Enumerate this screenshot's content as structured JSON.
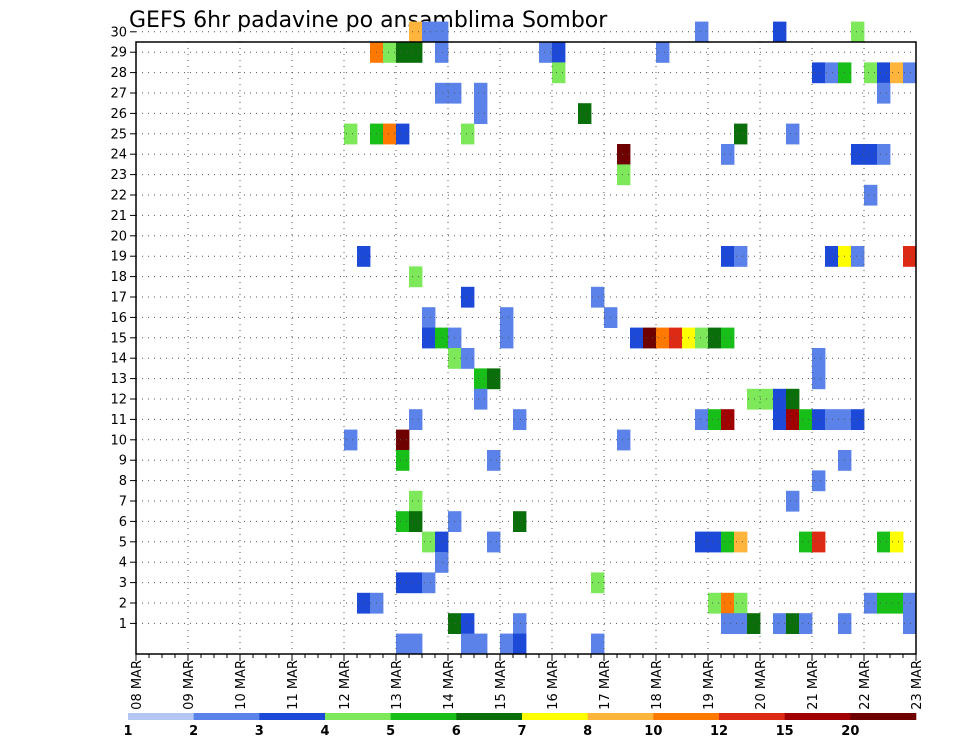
{
  "chart_data": {
    "type": "heatmap",
    "title": "GEFS 6hr padavine po ansamblima Sombor",
    "x_dates": [
      "08 MAR",
      "09 MAR",
      "10 MAR",
      "11 MAR",
      "12 MAR",
      "13 MAR",
      "14 MAR",
      "15 MAR",
      "16 MAR",
      "17 MAR",
      "18 MAR",
      "19 MAR",
      "20 MAR",
      "21 MAR",
      "22 MAR",
      "23 MAR"
    ],
    "x_range_days": [
      0,
      15
    ],
    "step_days": 0.25,
    "y_members": [
      1,
      2,
      3,
      4,
      5,
      6,
      7,
      8,
      9,
      10,
      11,
      12,
      13,
      14,
      15,
      16,
      17,
      18,
      19,
      20,
      21,
      22,
      23,
      24,
      25,
      26,
      27,
      28,
      29,
      30
    ],
    "grid": "dotted",
    "legend": {
      "placement": "bottom",
      "colors": [
        "#b4c6f2",
        "#5a82e8",
        "#1c49d8",
        "#7ce85a",
        "#18bf18",
        "#0a6e0a",
        "#ffff00",
        "#ffb43c",
        "#ff7800",
        "#dc2a14",
        "#a00000",
        "#6e0000"
      ],
      "labels": [
        "1",
        "2",
        "3",
        "4",
        "5",
        "6",
        "7",
        "8",
        "10",
        "12",
        "15",
        "20"
      ]
    },
    "cells": [
      [
        5.25,
        30,
        7
      ],
      [
        5.5,
        30,
        1
      ],
      [
        5.75,
        30,
        1
      ],
      [
        10.75,
        30,
        1
      ],
      [
        12.25,
        30,
        2
      ],
      [
        13.75,
        30,
        3
      ],
      [
        4.5,
        29,
        8
      ],
      [
        4.75,
        29,
        3
      ],
      [
        5.0,
        29,
        5
      ],
      [
        5.25,
        29,
        5
      ],
      [
        5.75,
        29,
        1
      ],
      [
        7.75,
        29,
        1
      ],
      [
        8.0,
        29,
        2
      ],
      [
        10.0,
        29,
        1
      ],
      [
        8.0,
        28,
        3
      ],
      [
        13.0,
        28,
        2
      ],
      [
        13.25,
        28,
        1
      ],
      [
        13.5,
        28,
        4
      ],
      [
        14.0,
        28,
        3
      ],
      [
        14.25,
        28,
        2
      ],
      [
        14.5,
        28,
        7
      ],
      [
        14.75,
        28,
        1
      ],
      [
        5.75,
        27,
        1
      ],
      [
        6.0,
        27,
        1
      ],
      [
        6.5,
        27,
        1
      ],
      [
        14.25,
        27,
        1
      ],
      [
        6.5,
        26,
        1
      ],
      [
        8.5,
        26,
        5
      ],
      [
        4.0,
        25,
        3
      ],
      [
        4.5,
        25,
        4
      ],
      [
        4.75,
        25,
        8
      ],
      [
        5.0,
        25,
        2
      ],
      [
        6.25,
        25,
        3
      ],
      [
        11.5,
        25,
        5
      ],
      [
        12.5,
        25,
        1
      ],
      [
        9.25,
        24,
        11
      ],
      [
        11.25,
        24,
        1
      ],
      [
        13.75,
        24,
        2
      ],
      [
        14.0,
        24,
        2
      ],
      [
        14.25,
        24,
        1
      ],
      [
        9.25,
        23,
        3
      ],
      [
        14.0,
        22,
        1
      ],
      [
        4.25,
        19,
        2
      ],
      [
        11.25,
        19,
        2
      ],
      [
        11.5,
        19,
        1
      ],
      [
        13.25,
        19,
        2
      ],
      [
        13.5,
        19,
        6
      ],
      [
        13.75,
        19,
        1
      ],
      [
        14.75,
        19,
        9
      ],
      [
        5.25,
        18,
        3
      ],
      [
        6.25,
        17,
        2
      ],
      [
        8.75,
        17,
        1
      ],
      [
        5.5,
        16,
        1
      ],
      [
        7.0,
        16,
        1
      ],
      [
        9.0,
        16,
        1
      ],
      [
        5.5,
        15,
        2
      ],
      [
        5.75,
        15,
        4
      ],
      [
        6.0,
        15,
        1
      ],
      [
        7.0,
        15,
        1
      ],
      [
        9.5,
        15,
        2
      ],
      [
        9.75,
        15,
        11
      ],
      [
        10.0,
        15,
        8
      ],
      [
        10.25,
        15,
        9
      ],
      [
        10.5,
        15,
        6
      ],
      [
        10.75,
        15,
        3
      ],
      [
        11.0,
        15,
        5
      ],
      [
        11.25,
        15,
        4
      ],
      [
        6.0,
        14,
        3
      ],
      [
        6.25,
        14,
        1
      ],
      [
        13.0,
        14,
        1
      ],
      [
        6.5,
        13,
        4
      ],
      [
        6.75,
        13,
        5
      ],
      [
        13.0,
        13,
        1
      ],
      [
        6.5,
        12,
        1
      ],
      [
        11.75,
        12,
        3
      ],
      [
        12.0,
        12,
        3
      ],
      [
        12.25,
        12,
        2
      ],
      [
        12.5,
        12,
        5
      ],
      [
        5.25,
        11,
        1
      ],
      [
        7.25,
        11,
        1
      ],
      [
        10.75,
        11,
        1
      ],
      [
        11.0,
        11,
        4
      ],
      [
        11.25,
        11,
        10
      ],
      [
        12.25,
        11,
        2
      ],
      [
        12.5,
        11,
        10
      ],
      [
        12.75,
        11,
        4
      ],
      [
        13.0,
        11,
        2
      ],
      [
        13.25,
        11,
        1
      ],
      [
        13.5,
        11,
        1
      ],
      [
        13.75,
        11,
        2
      ],
      [
        4.0,
        10,
        1
      ],
      [
        5.0,
        10,
        11
      ],
      [
        9.25,
        10,
        1
      ],
      [
        5.0,
        9,
        4
      ],
      [
        6.75,
        9,
        1
      ],
      [
        13.5,
        9,
        1
      ],
      [
        13.0,
        8,
        1
      ],
      [
        5.25,
        7,
        3
      ],
      [
        12.5,
        7,
        1
      ],
      [
        5.0,
        6,
        4
      ],
      [
        5.25,
        6,
        5
      ],
      [
        6.0,
        6,
        1
      ],
      [
        7.25,
        6,
        5
      ],
      [
        5.5,
        5,
        3
      ],
      [
        5.75,
        5,
        2
      ],
      [
        6.75,
        5,
        1
      ],
      [
        10.75,
        5,
        2
      ],
      [
        11.0,
        5,
        2
      ],
      [
        11.25,
        5,
        4
      ],
      [
        11.5,
        5,
        7
      ],
      [
        12.75,
        5,
        4
      ],
      [
        13.0,
        5,
        9
      ],
      [
        14.25,
        5,
        4
      ],
      [
        14.5,
        5,
        6
      ],
      [
        5.75,
        4,
        1
      ],
      [
        5.0,
        3,
        2
      ],
      [
        5.25,
        3,
        2
      ],
      [
        5.5,
        3,
        1
      ],
      [
        8.75,
        3,
        3
      ],
      [
        4.25,
        2,
        2
      ],
      [
        4.5,
        2,
        1
      ],
      [
        11.0,
        2,
        3
      ],
      [
        11.25,
        2,
        8
      ],
      [
        11.5,
        2,
        3
      ],
      [
        14.0,
        2,
        1
      ],
      [
        14.25,
        2,
        4
      ],
      [
        14.5,
        2,
        4
      ],
      [
        14.75,
        2,
        1
      ],
      [
        6.0,
        1,
        5
      ],
      [
        6.25,
        1,
        2
      ],
      [
        7.25,
        1,
        1
      ],
      [
        11.25,
        1,
        1
      ],
      [
        11.5,
        1,
        1
      ],
      [
        11.75,
        1,
        5
      ],
      [
        12.25,
        1,
        1
      ],
      [
        12.5,
        1,
        5
      ],
      [
        12.75,
        1,
        1
      ],
      [
        13.5,
        1,
        1
      ],
      [
        14.75,
        1,
        1
      ],
      [
        5.0,
        0,
        1
      ],
      [
        5.25,
        0,
        1
      ],
      [
        6.25,
        0,
        1
      ],
      [
        6.5,
        0,
        1
      ],
      [
        7.0,
        0,
        1
      ],
      [
        7.25,
        0,
        2
      ],
      [
        8.75,
        0,
        1
      ]
    ]
  }
}
